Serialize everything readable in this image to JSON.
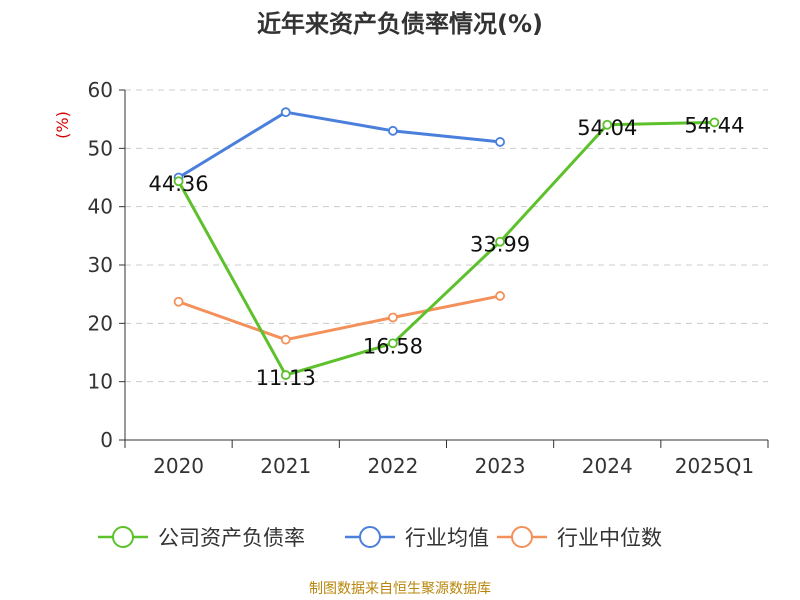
{
  "chart_data": {
    "type": "line",
    "title": "近年来资产负债率情况(%)",
    "ylabel": "(%)",
    "xlabel": "",
    "categories": [
      "2020",
      "2021",
      "2022",
      "2023",
      "2024",
      "2025Q1"
    ],
    "ylim": [
      0,
      60
    ],
    "yticks": [
      0,
      10,
      20,
      30,
      40,
      50,
      60
    ],
    "grid": true,
    "legend_position": "bottom",
    "series": [
      {
        "name": "公司资产负债率",
        "color": "#5cc12a",
        "values": [
          44.36,
          11.13,
          16.58,
          33.99,
          54.04,
          54.44
        ],
        "labels": [
          "44.36",
          "11.13",
          "16.58",
          "33.99",
          "54.04",
          "54.44"
        ]
      },
      {
        "name": "行业均值",
        "color": "#4a7fdc",
        "values": [
          45.0,
          56.2,
          53.0,
          51.1,
          null,
          null
        ]
      },
      {
        "name": "行业中位数",
        "color": "#f4905a",
        "values": [
          23.7,
          17.2,
          21.0,
          24.7,
          null,
          null
        ]
      }
    ]
  },
  "source_note": "制图数据来自恒生聚源数据库",
  "colors": {
    "axis": "#333333",
    "grid": "#cccccc",
    "ylabel": "#d40000",
    "source": "#b8860b"
  }
}
